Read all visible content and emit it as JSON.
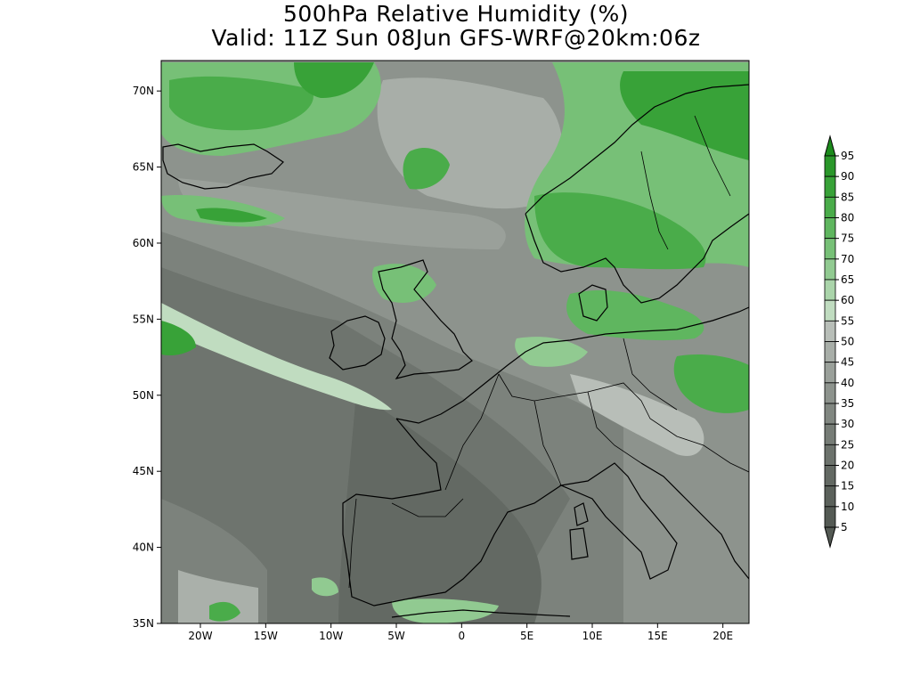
{
  "title": {
    "line1": "500hPa Relative Humidity (%)",
    "line2": "Valid: 11Z Sun 08Jun GFS-WRF@20km:06z"
  },
  "map": {
    "region": "Western Europe / North Atlantic",
    "lon_range": [
      -23,
      22
    ],
    "lat_range": [
      35,
      72
    ],
    "lon_ticks": [
      "20W",
      "15W",
      "10W",
      "5W",
      "0",
      "5E",
      "10E",
      "15E",
      "20E"
    ],
    "lat_ticks": [
      "70N",
      "65N",
      "60N",
      "55N",
      "50N",
      "45N",
      "40N",
      "35N"
    ]
  },
  "colorbar": {
    "levels": [
      "95",
      "90",
      "85",
      "80",
      "75",
      "70",
      "65",
      "60",
      "55",
      "50",
      "45",
      "40",
      "35",
      "30",
      "25",
      "20",
      "15",
      "10",
      "5"
    ],
    "colors": [
      "#1c8b1c",
      "#2a972a",
      "#38a238",
      "#4aac4a",
      "#5fb65f",
      "#77c077",
      "#91ca91",
      "#aad4aa",
      "#c0dcc0",
      "#b8beb8",
      "#a8aea8",
      "#9aa09a",
      "#8d938d",
      "#818781",
      "#767c76",
      "#6c726c",
      "#636963",
      "#5b615b",
      "#545a54"
    ]
  }
}
